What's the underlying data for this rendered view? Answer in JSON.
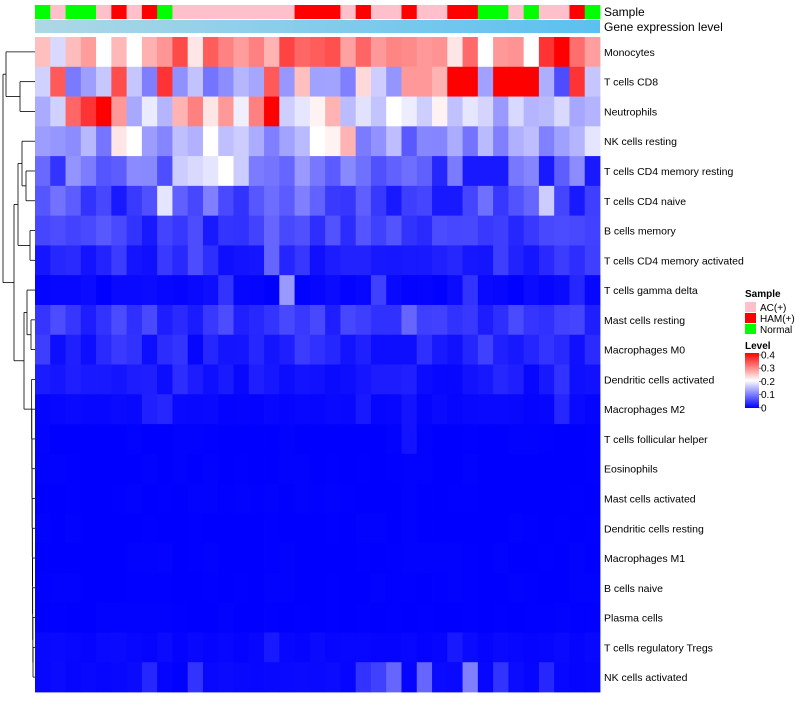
{
  "chart_data": {
    "type": "heatmap",
    "title": "",
    "annotations": {
      "sample_label": "Sample",
      "gene_label": "Gene expression level",
      "sample_colors": {
        "AC(+)": "#ffc0cb",
        "HAM(+)": "#ff0000",
        "Normal": "#00ff00"
      },
      "sample_groups": [
        "Normal",
        "AC(+)",
        "Normal",
        "Normal",
        "AC(+)",
        "HAM(+)",
        "AC(+)",
        "HAM(+)",
        "Normal",
        "AC(+)",
        "AC(+)",
        "AC(+)",
        "AC(+)",
        "AC(+)",
        "AC(+)",
        "AC(+)",
        "AC(+)",
        "HAM(+)",
        "HAM(+)",
        "HAM(+)",
        "AC(+)",
        "HAM(+)",
        "AC(+)",
        "AC(+)",
        "HAM(+)",
        "AC(+)",
        "AC(+)",
        "HAM(+)",
        "HAM(+)",
        "Normal",
        "Normal",
        "AC(+)",
        "Normal",
        "AC(+)",
        "AC(+)",
        "HAM(+)",
        "Normal"
      ],
      "gene_bar_color_left": "#add8e6",
      "gene_bar_color_right": "#5bc0f0"
    },
    "rows": [
      "Monocytes",
      "T cells CD8",
      "Neutrophils",
      "NK cells resting",
      "T cells CD4 memory resting",
      "T cells CD4 naive",
      "B cells memory",
      "T cells CD4 memory activated",
      "T cells gamma delta",
      "Mast cells resting",
      "Macrophages M0",
      "Dendritic cells activated",
      "Macrophages M2",
      "T cells follicular helper",
      "Eosinophils",
      "Mast cells activated",
      "Dendritic cells resting",
      "Macrophages M1",
      "B cells naive",
      "Plasma cells",
      "T cells regulatory  Tregs",
      "NK cells activated"
    ],
    "ncols": 37,
    "row_patterns": [
      {
        "base": 0.3,
        "amp": 0.05,
        "specials": {
          "1": 0.17,
          "4": 0.2,
          "6": 0.2,
          "10": 0.22,
          "15": 0.26,
          "27": 0.22,
          "29": 0.2,
          "32": 0.2,
          "33": 0.36,
          "34": 0.4
        }
      },
      {
        "base": 0.13,
        "amp": 0.04,
        "specials": {
          "1": 0.33,
          "5": 0.34,
          "8": 0.36,
          "15": 0.33,
          "17": 0.25,
          "21": 0.23,
          "24": 0.28,
          "25": 0.28,
          "26": 0.26,
          "27": 0.4,
          "28": 0.4,
          "30": 0.42,
          "31": 0.42,
          "32": 0.42,
          "34": 0.06,
          "35": 0.36
        }
      },
      {
        "base": 0.16,
        "amp": 0.03,
        "specials": {
          "2": 0.32,
          "3": 0.36,
          "4": 0.42,
          "5": 0.28,
          "9": 0.26,
          "10": 0.3,
          "11": 0.22,
          "12": 0.28,
          "14": 0.3,
          "15": 0.42,
          "18": 0.21,
          "19": 0.26,
          "23": 0.2,
          "26": 0.21,
          "30": 0.12,
          "36": 0.14
        }
      },
      {
        "base": 0.12,
        "amp": 0.03,
        "specials": {
          "5": 0.22,
          "6": 0.2,
          "9": 0.15,
          "11": 0.2,
          "13": 0.16,
          "18": 0.2,
          "19": 0.21,
          "20": 0.26,
          "24": 0.07,
          "28": 0.09,
          "36": 0.18
        }
      },
      {
        "base": 0.09,
        "amp": 0.03,
        "specials": {
          "1": 0.04,
          "9": 0.16,
          "10": 0.17,
          "11": 0.18,
          "12": 0.2,
          "13": 0.16,
          "26": 0.03,
          "28": 0.02,
          "29": 0.02,
          "30": 0.02,
          "33": 0.02,
          "36": 0.02
        }
      },
      {
        "base": 0.07,
        "amp": 0.03,
        "specials": {
          "3": 0.04,
          "5": 0.02,
          "8": 0.18,
          "13": 0.04,
          "23": 0.02,
          "26": 0.02,
          "27": 0.02,
          "33": 0.16,
          "35": 0.02
        }
      },
      {
        "base": 0.05,
        "amp": 0.02,
        "specials": {
          "7": 0.02,
          "11": 0.02,
          "15": 0.08,
          "24": 0.04
        }
      },
      {
        "base": 0.03,
        "amp": 0.02,
        "specials": {
          "10": 0.06,
          "15": 0.08,
          "24": 0.02
        }
      },
      {
        "base": 0.005,
        "amp": 0.005,
        "specials": {
          "12": 0.04,
          "16": 0.12,
          "22": 0.05,
          "28": 0.04,
          "35": 0.03
        }
      },
      {
        "base": 0.04,
        "amp": 0.02,
        "specials": {
          "1": 0.06,
          "12": 0.06,
          "24": 0.08
        }
      },
      {
        "base": 0.03,
        "amp": 0.02,
        "specials": {
          "3": 0.01,
          "7": 0.01,
          "10": 0.005,
          "22": 0.01
        }
      },
      {
        "base": 0.015,
        "amp": 0.01,
        "specials": {
          "9": 0.035,
          "30": 0.03,
          "34": 0.04
        }
      },
      {
        "base": 0.005,
        "amp": 0.003,
        "specials": {
          "7": 0.025,
          "8": 0.03,
          "21": 0.02,
          "24": 0.015,
          "34": 0.03
        }
      },
      {
        "base": 0.0,
        "amp": 0.002,
        "specials": {
          "24": 0.015
        }
      },
      {
        "base": 0.0,
        "amp": 0.002,
        "specials": {}
      },
      {
        "base": 0.0,
        "amp": 0.002,
        "specials": {}
      },
      {
        "base": 0.0,
        "amp": 0.002,
        "specials": {}
      },
      {
        "base": 0.0,
        "amp": 0.002,
        "specials": {}
      },
      {
        "base": 0.0,
        "amp": 0.002,
        "specials": {}
      },
      {
        "base": 0.0,
        "amp": 0.002,
        "specials": {}
      },
      {
        "base": 0.005,
        "amp": 0.003,
        "specials": {
          "15": 0.02,
          "27": 0.02
        }
      },
      {
        "base": 0.005,
        "amp": 0.004,
        "specials": {
          "7": 0.03,
          "10": 0.04,
          "21": 0.04,
          "22": 0.05,
          "23": 0.08,
          "25": 0.08,
          "28": 0.1,
          "30": 0.04,
          "33": 0.03
        }
      }
    ],
    "value_range": [
      0,
      0.4
    ],
    "legend": {
      "sample_title": "Sample",
      "sample_entries": [
        {
          "label": "AC(+)",
          "color": "#ffc0cb"
        },
        {
          "label": "HAM(+)",
          "color": "#ff0000"
        },
        {
          "label": "Normal",
          "color": "#00ff00"
        }
      ],
      "level_title": "Level",
      "level_ticks": [
        "0.4",
        "0.3",
        "0.2",
        "0.1",
        "0"
      ],
      "placement": "right"
    },
    "colors": {
      "low": "#0000ff",
      "mid": "#ffffff",
      "high": "#ff0000"
    }
  }
}
